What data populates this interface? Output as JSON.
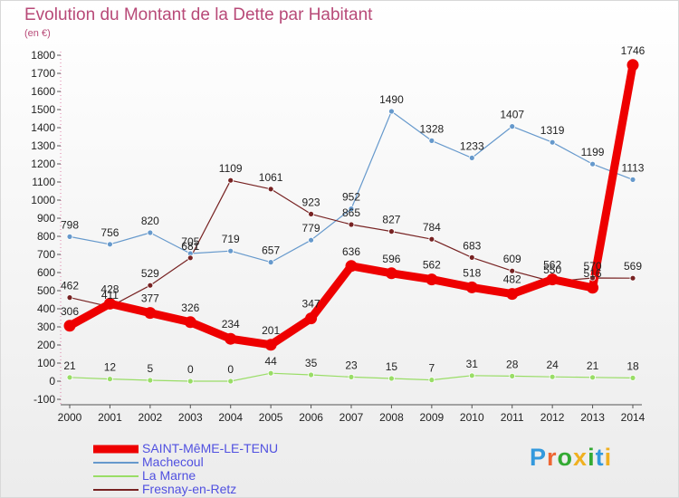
{
  "chart_data": {
    "type": "line",
    "title": "Evolution du Montant de la Dette par Habitant",
    "unit_label": "(en €)",
    "x": [
      "2000",
      "2001",
      "2002",
      "2003",
      "2004",
      "2005",
      "2006",
      "2007",
      "2008",
      "2009",
      "2010",
      "2011",
      "2012",
      "2013",
      "2014"
    ],
    "ylim": [
      -100,
      1800
    ],
    "yticks": [
      -100,
      0,
      100,
      200,
      300,
      400,
      500,
      600,
      700,
      800,
      900,
      1000,
      1100,
      1200,
      1300,
      1400,
      1500,
      1600,
      1700,
      1800
    ],
    "grid": false,
    "legend_position": "bottom-left",
    "series": [
      {
        "name": "SAINT-MêME-LE-TENU",
        "color": "#ee0000",
        "values": [
          306,
          428,
          377,
          326,
          234,
          201,
          347,
          636,
          596,
          562,
          518,
          482,
          562,
          516,
          1746
        ]
      },
      {
        "name": "Machecoul",
        "color": "#6699cc",
        "values": [
          798,
          756,
          820,
          705,
          719,
          657,
          779,
          952,
          1490,
          1328,
          1233,
          1407,
          1319,
          1199,
          1113
        ]
      },
      {
        "name": "La Marne",
        "color": "#99dd66",
        "values": [
          21,
          12,
          5,
          0,
          0,
          44,
          35,
          23,
          15,
          7,
          31,
          28,
          24,
          21,
          18
        ]
      },
      {
        "name": "Fresnay-en-Retz",
        "color": "#772222",
        "values": [
          462,
          411,
          529,
          681,
          1109,
          1061,
          923,
          865,
          827,
          784,
          683,
          609,
          550,
          570,
          569
        ]
      }
    ]
  },
  "brand": {
    "letters": [
      "P",
      "r",
      "o",
      "x",
      "i",
      "t",
      "i"
    ],
    "colors": [
      "#3399dd",
      "#ee6633",
      "#33aa33",
      "#f0b020",
      "#33aa33",
      "#3399dd",
      "#f0b020"
    ]
  }
}
